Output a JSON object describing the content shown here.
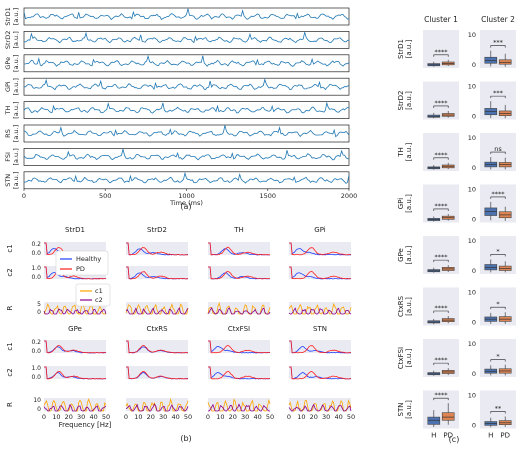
{
  "colors": {
    "trace": "#1f77b4",
    "healthy": "#1f3fff",
    "pd": "#ff1f1f",
    "c1": "#ffa500",
    "c2": "#8b008b",
    "bg": "#eaeaf2",
    "box_h": "#4c72b0",
    "box_pd": "#dd8452",
    "axis": "#222222"
  },
  "panel_labels": {
    "a": "(a)",
    "b": "(b)",
    "c": "(c)"
  },
  "chart_data": [
    {
      "id": "a",
      "type": "line",
      "channels": [
        {
          "region": "StrD1",
          "unit": "[a.u.]"
        },
        {
          "region": "StrD2",
          "unit": "[a.u.]"
        },
        {
          "region": "GPe",
          "unit": "[a.u.]"
        },
        {
          "region": "GPi",
          "unit": "[a.u.]"
        },
        {
          "region": "TH",
          "unit": "[a.u.]"
        },
        {
          "region": "RS",
          "unit": "[a.u.]"
        },
        {
          "region": "FSI",
          "unit": "[a.u.]"
        },
        {
          "region": "STN",
          "unit": "[a.u.]"
        }
      ],
      "xlim": [
        0,
        2000
      ],
      "xticks": [
        "0",
        "500",
        "1000",
        "1500",
        "2000"
      ],
      "xlabel": "Time (ms)"
    },
    {
      "id": "b",
      "type": "line",
      "regions": [
        "StrD1",
        "StrD2",
        "TH",
        "GPi",
        "GPe",
        "CtxRS",
        "CtxFSI",
        "STN"
      ],
      "row_labels": [
        "c1",
        "c2",
        "R"
      ],
      "xlim": [
        0,
        50
      ],
      "xticks": [
        "0",
        "10",
        "20",
        "30",
        "40",
        "50"
      ],
      "xlabel": "Frequency [Hz]",
      "yticks": {
        "c1": [
          "0.0",
          "0.2"
        ],
        "c2": [
          "0.0",
          "1.0"
        ],
        "R_top": [
          "0",
          "5"
        ],
        "R_bottom": [
          "0",
          "10"
        ]
      },
      "legend_top": [
        {
          "name": "Healthy"
        },
        {
          "name": "PD"
        }
      ],
      "legend_bottom": [
        {
          "name": "c1"
        },
        {
          "name": "c2"
        }
      ]
    },
    {
      "id": "c",
      "type": "box",
      "columns": [
        "Cluster 1",
        "Cluster 2"
      ],
      "ytick_col2": [
        "0",
        "10"
      ],
      "xticks": [
        "H",
        "PD"
      ],
      "rows": [
        {
          "region": "StrD1",
          "unit": "[a.u.]",
          "sig": [
            "****",
            "***"
          ],
          "boxes": [
            [
              0.4,
              0.7,
              1.0,
              1.4,
              2.0
            ],
            [
              0.6,
              1.0,
              1.4,
              1.9,
              2.6
            ],
            [
              0.5,
              1.5,
              2.4,
              3.4,
              5.5
            ],
            [
              0.4,
              1.2,
              1.8,
              2.6,
              4.5
            ]
          ]
        },
        {
          "region": "StrD2",
          "unit": "[a.u.]",
          "sig": [
            "****",
            "***"
          ],
          "boxes": [
            [
              0.4,
              0.7,
              1.0,
              1.4,
              2.1
            ],
            [
              0.6,
              1.0,
              1.4,
              1.9,
              2.7
            ],
            [
              0.5,
              1.5,
              2.5,
              3.5,
              5.8
            ],
            [
              0.4,
              1.2,
              1.9,
              2.7,
              4.6
            ]
          ]
        },
        {
          "region": "TH",
          "unit": "[a.u.]",
          "sig": [
            "****",
            "ns"
          ],
          "boxes": [
            [
              0.4,
              0.7,
              1.0,
              1.3,
              1.9
            ],
            [
              0.6,
              1.0,
              1.5,
              1.9,
              2.6
            ],
            [
              0.5,
              1.3,
              2.0,
              2.8,
              4.4
            ],
            [
              0.5,
              1.3,
              2.0,
              2.7,
              4.2
            ]
          ]
        },
        {
          "region": "GPi",
          "unit": "[a.u.]",
          "sig": [
            "****",
            "****"
          ],
          "boxes": [
            [
              0.3,
              0.6,
              0.9,
              1.3,
              1.9
            ],
            [
              0.6,
              1.0,
              1.5,
              2.0,
              2.7
            ],
            [
              0.7,
              2.2,
              3.5,
              4.6,
              6.5
            ],
            [
              0.5,
              1.5,
              2.4,
              3.4,
              5.0
            ]
          ]
        },
        {
          "region": "GPe",
          "unit": "[a.u.]",
          "sig": [
            "****",
            "*"
          ],
          "boxes": [
            [
              0.4,
              0.7,
              1.0,
              1.4,
              2.0
            ],
            [
              0.6,
              1.1,
              1.6,
              2.1,
              2.8
            ],
            [
              0.5,
              1.3,
              2.1,
              3.0,
              4.6
            ],
            [
              0.5,
              1.1,
              1.7,
              2.5,
              4.0
            ]
          ]
        },
        {
          "region": "CtxRS",
          "unit": "[a.u.]",
          "sig": [
            "****",
            "*"
          ],
          "boxes": [
            [
              0.4,
              0.8,
              1.1,
              1.5,
              2.1
            ],
            [
              0.7,
              1.2,
              1.7,
              2.2,
              3.0
            ],
            [
              0.5,
              1.3,
              2.0,
              2.7,
              4.0
            ],
            [
              0.5,
              1.3,
              2.0,
              2.8,
              4.2
            ]
          ]
        },
        {
          "region": "CtxFSI",
          "unit": "[a.u.]",
          "sig": [
            "****",
            "*"
          ],
          "boxes": [
            [
              0.4,
              0.7,
              1.0,
              1.4,
              2.0
            ],
            [
              0.6,
              1.1,
              1.6,
              2.1,
              2.8
            ],
            [
              0.5,
              1.2,
              1.8,
              2.5,
              3.7
            ],
            [
              0.5,
              1.2,
              1.9,
              2.6,
              3.9
            ]
          ]
        },
        {
          "region": "STN",
          "unit": "[a.u.]",
          "sig": [
            "****",
            "**"
          ],
          "boxes": [
            [
              0.5,
              1.3,
              2.6,
              3.6,
              5.8
            ],
            [
              1.2,
              2.6,
              3.6,
              5.0,
              8.0
            ],
            [
              0.4,
              1.0,
              1.6,
              2.2,
              3.4
            ],
            [
              0.5,
              1.2,
              1.8,
              2.5,
              3.8
            ]
          ]
        }
      ]
    }
  ]
}
